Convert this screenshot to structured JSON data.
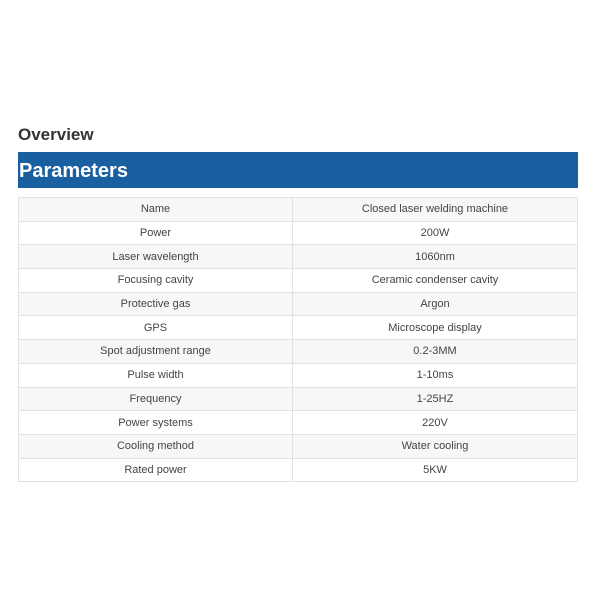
{
  "overview_title": "Overview",
  "section_title": "Parameters",
  "colors": {
    "banner": "#1a5fa0"
  },
  "rows": [
    {
      "label": "Name",
      "value": "Closed laser welding machine"
    },
    {
      "label": "Power",
      "value": "200W"
    },
    {
      "label": "Laser wavelength",
      "value": "1060nm"
    },
    {
      "label": "Focusing cavity",
      "value": "Ceramic condenser cavity"
    },
    {
      "label": "Protective gas",
      "value": "Argon"
    },
    {
      "label": "GPS",
      "value": "Microscope display"
    },
    {
      "label": "Spot adjustment range",
      "value": "0.2-3MM"
    },
    {
      "label": "Pulse width",
      "value": "1-10ms"
    },
    {
      "label": "Frequency",
      "value": "1-25HZ"
    },
    {
      "label": "Power systems",
      "value": "220V"
    },
    {
      "label": "Cooling method",
      "value": "Water cooling"
    },
    {
      "label": "Rated power",
      "value": "5KW"
    }
  ]
}
